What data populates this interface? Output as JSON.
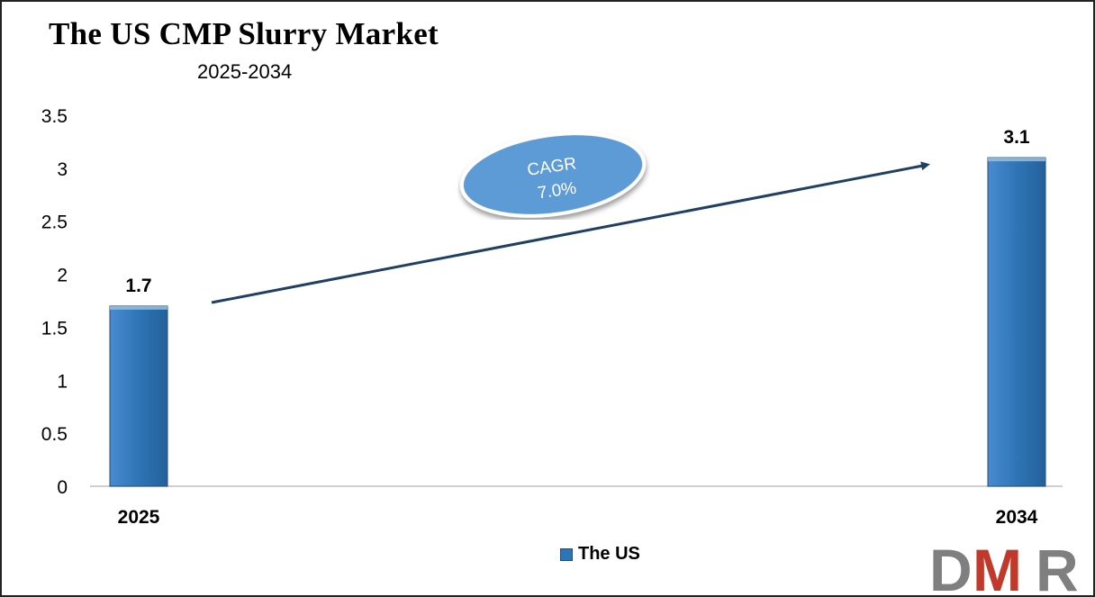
{
  "chart_data": {
    "type": "bar",
    "title": "The US CMP Slurry Market",
    "subtitle": "2025-2034",
    "categories": [
      "2025",
      "2034"
    ],
    "series": [
      {
        "name": "The US",
        "values": [
          1.7,
          3.1
        ]
      }
    ],
    "data_labels": [
      "1.7",
      "3.1"
    ],
    "yticks": [
      "0",
      "0.5",
      "1",
      "1.5",
      "2",
      "2.5",
      "3",
      "3.5"
    ],
    "ylim": [
      0,
      3.5
    ],
    "grid": false,
    "legend": "bottom-center",
    "annotation": {
      "line1": "CAGR",
      "line2": "7.0%"
    },
    "colors": {
      "bar": "#2e75b6",
      "arrow": "#1f3f63",
      "badge": "#5b9bd5"
    }
  },
  "logo": {
    "text": "DMR",
    "colors": [
      "#7f7f7f",
      "#c0392b"
    ]
  }
}
